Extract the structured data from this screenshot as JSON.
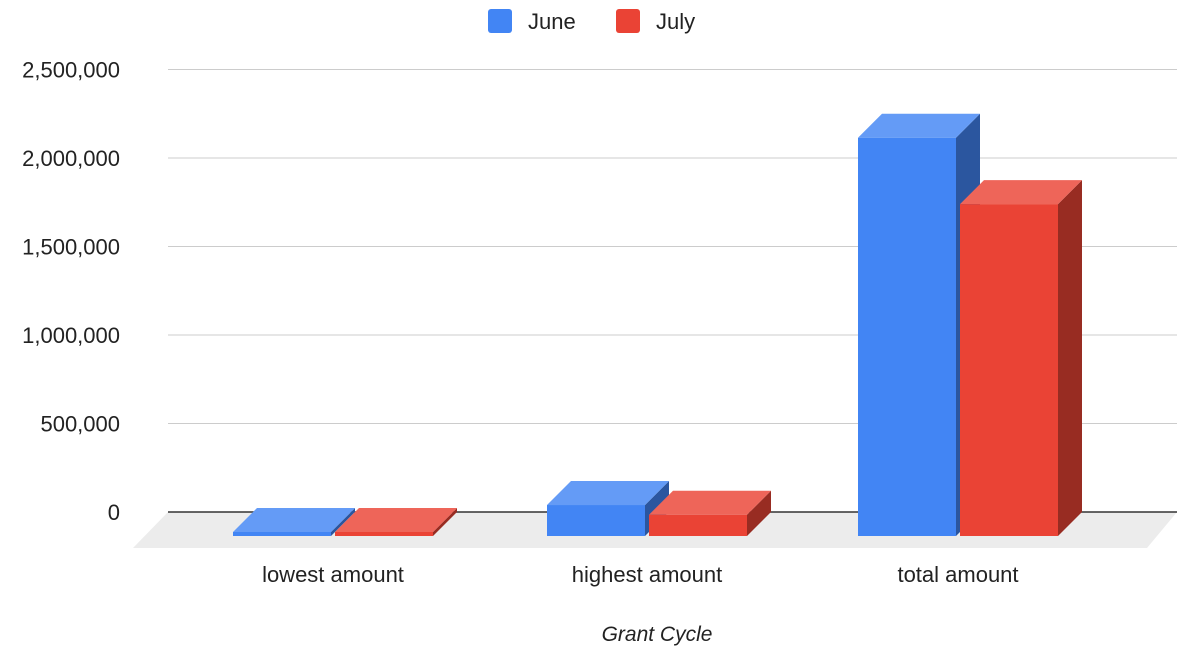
{
  "chart_data": {
    "type": "bar",
    "style": "3d",
    "categories": [
      "lowest amount",
      "highest amount",
      "total amount"
    ],
    "series": [
      {
        "name": "June",
        "color": "#4285f4",
        "values": [
          -100000,
          175000,
          2250000
        ]
      },
      {
        "name": "July",
        "color": "#ea4335",
        "values": [
          -95000,
          120000,
          1875000
        ]
      }
    ],
    "xlabel": "Grant Cycle",
    "ylabel": "",
    "ylim": [
      0,
      2500000
    ],
    "yticks": [
      "0",
      "500,000",
      "1,000,000",
      "1,500,000",
      "2,000,000",
      "2,500,000"
    ],
    "ytick_values": [
      0,
      500000,
      1000000,
      1500000,
      2000000,
      2500000
    ],
    "grid": true,
    "legend_position": "top"
  }
}
